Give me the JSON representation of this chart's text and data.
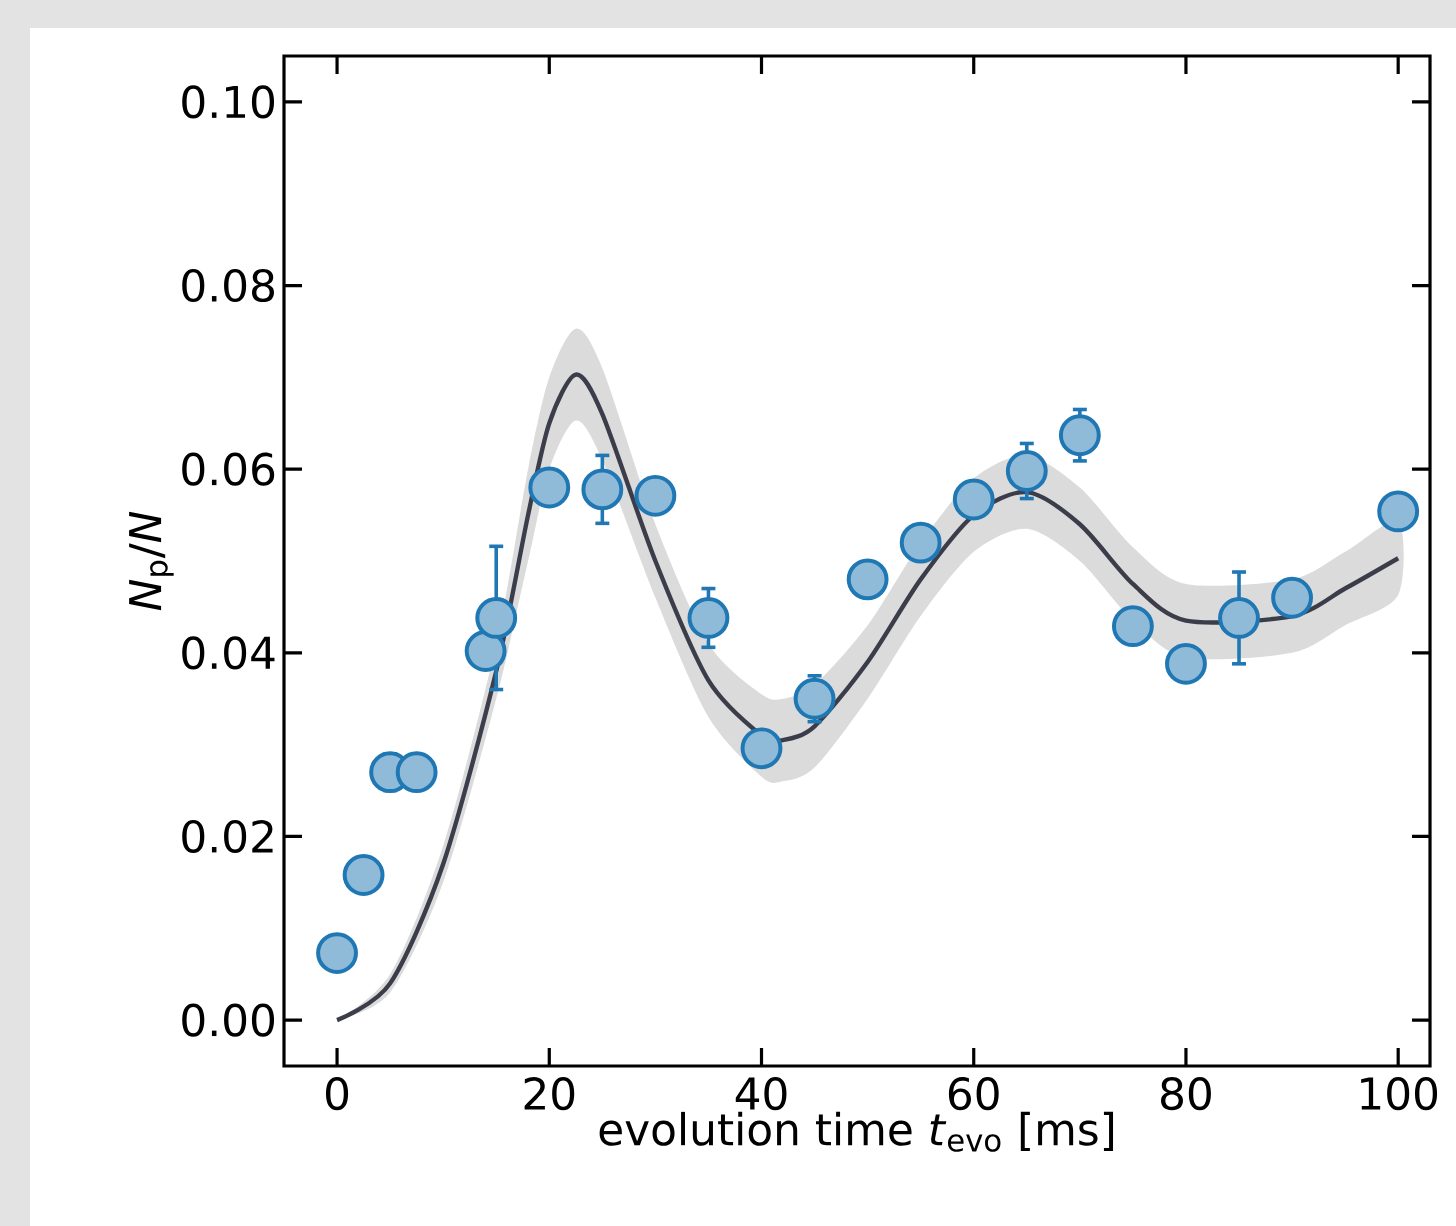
{
  "chart_data": {
    "type": "scatter",
    "xlabel": "evolution time *t*$_{evo}$ [ms]",
    "ylabel": "*N*$_{p}$/*N*",
    "xlim": [
      -5,
      103
    ],
    "ylim": [
      -0.005,
      0.105
    ],
    "xticks": [
      0,
      20,
      40,
      60,
      80,
      100
    ],
    "yticks": [
      {
        "value": 0,
        "label": "0.00"
      },
      {
        "value": 0.02,
        "label": "0.02"
      },
      {
        "value": 0.04,
        "label": "0.04"
      },
      {
        "value": 0.06,
        "label": "0.06"
      },
      {
        "value": 0.08,
        "label": "0.08"
      },
      {
        "value": 0.1,
        "label": "0.10"
      }
    ],
    "grid": false,
    "series": [
      {
        "type": "line",
        "color": "#3b3d4a",
        "marker": "none",
        "line_style": "solid",
        "x": [
          0,
          5,
          10,
          15,
          18,
          20,
          22.5,
          25,
          30,
          35,
          40,
          42,
          45,
          50,
          55,
          60,
          65,
          70,
          75,
          80,
          90,
          95,
          100
        ],
        "values": [
          0,
          0.004,
          0.017,
          0.038,
          0.055,
          0.065,
          0.0703,
          0.066,
          0.05,
          0.037,
          0.031,
          0.0305,
          0.032,
          0.039,
          0.048,
          0.055,
          0.0575,
          0.054,
          0.0475,
          0.0435,
          0.044,
          0.047,
          0.0503
        ],
        "lower": [
          0,
          0.003,
          0.015,
          0.035,
          0.05,
          0.06,
          0.0653,
          0.061,
          0.046,
          0.033,
          0.0265,
          0.026,
          0.0275,
          0.035,
          0.044,
          0.051,
          0.0535,
          0.05,
          0.0435,
          0.0395,
          0.04,
          0.043,
          0.0463
        ],
        "upper": [
          0,
          0.005,
          0.019,
          0.041,
          0.06,
          0.07,
          0.0753,
          0.071,
          0.054,
          0.041,
          0.0355,
          0.035,
          0.0365,
          0.043,
          0.052,
          0.059,
          0.0615,
          0.058,
          0.0515,
          0.0475,
          0.048,
          0.051,
          0.0543
        ]
      },
      {
        "color": "#1f77b4",
        "marker": "circle",
        "x": [
          0,
          2.5,
          5,
          7.5,
          14,
          15,
          20,
          25,
          30,
          35,
          40,
          45,
          50,
          55,
          60,
          65,
          70,
          75,
          80,
          85,
          90,
          100
        ],
        "values": [
          0.0073,
          0.0158,
          0.027,
          0.027,
          0.0402,
          0.0438,
          0.058,
          0.0578,
          0.0571,
          0.0438,
          0.0296,
          0.035,
          0.048,
          0.052,
          0.0567,
          0.0598,
          0.0637,
          0.0429,
          0.0388,
          0.0438,
          0.046,
          0.0554
        ],
        "errors": [
          0.001,
          0.001,
          0.002,
          0.001,
          0.001,
          0.0078,
          0.001,
          0.0037,
          0.001,
          0.0032,
          0.001,
          0.0025,
          0.001,
          0.001,
          0.0017,
          0.003,
          0.0028,
          0.001,
          0.001,
          0.005,
          0.001,
          0.0015
        ]
      }
    ]
  }
}
